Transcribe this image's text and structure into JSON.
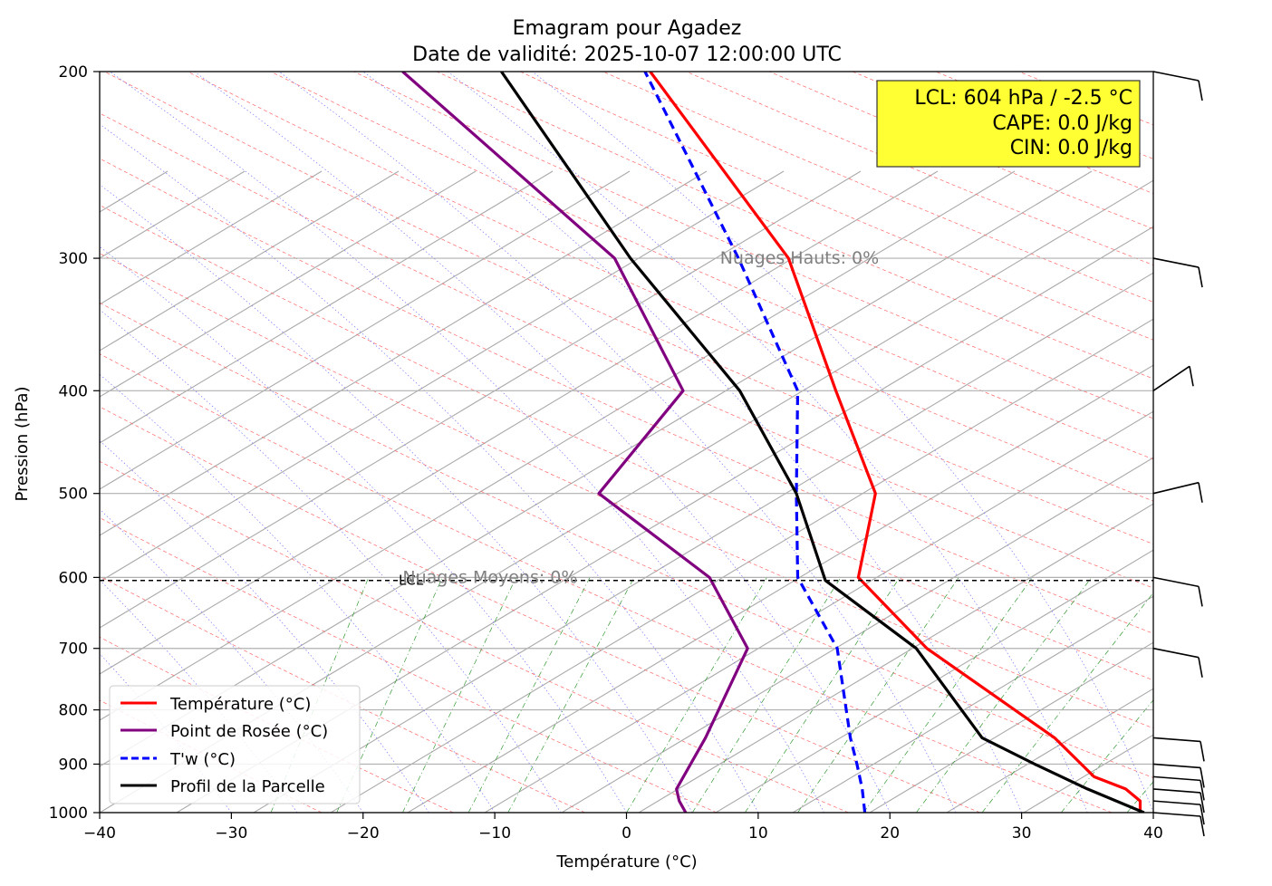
{
  "chart_data": {
    "type": "line",
    "title": "Emagram pour Agadez",
    "subtitle": "Date de validité: 2025-10-07 12:00:00 UTC",
    "xlabel": "Température (°C)",
    "ylabel": "Pression (hPa)",
    "xlim": [
      -40,
      40
    ],
    "ylim": [
      1000,
      200
    ],
    "y_scale": "log",
    "x_ticks": [
      {
        "value": -40,
        "label": "−40"
      },
      {
        "value": -30,
        "label": "−30"
      },
      {
        "value": -20,
        "label": "−20"
      },
      {
        "value": -10,
        "label": "−10"
      },
      {
        "value": 0,
        "label": "0"
      },
      {
        "value": 10,
        "label": "10"
      },
      {
        "value": 20,
        "label": "20"
      },
      {
        "value": 30,
        "label": "30"
      },
      {
        "value": 40,
        "label": "40"
      }
    ],
    "y_ticks": [
      {
        "value": 200,
        "label": "200"
      },
      {
        "value": 300,
        "label": "300"
      },
      {
        "value": 400,
        "label": "400"
      },
      {
        "value": 500,
        "label": "500"
      },
      {
        "value": 600,
        "label": "600"
      },
      {
        "value": 700,
        "label": "700"
      },
      {
        "value": 800,
        "label": "800"
      },
      {
        "value": 900,
        "label": "900"
      },
      {
        "value": 1000,
        "label": "1000"
      }
    ],
    "grid": true,
    "series": [
      {
        "name": "Température (°C)",
        "color": "#ff0000",
        "style": "solid",
        "points": [
          [
            39.0,
            1000
          ],
          [
            39.0,
            975
          ],
          [
            37.9,
            950
          ],
          [
            35.5,
            925
          ],
          [
            32.5,
            850
          ],
          [
            22.8,
            700
          ],
          [
            17.6,
            600
          ],
          [
            18.9,
            500
          ],
          [
            15.9,
            400
          ],
          [
            12.3,
            300
          ],
          [
            1.8,
            200
          ]
        ]
      },
      {
        "name": "Point de Rosée (°C)",
        "color": "#800080",
        "style": "solid",
        "points": [
          [
            4.5,
            1000
          ],
          [
            4.0,
            975
          ],
          [
            3.8,
            950
          ],
          [
            6.0,
            850
          ],
          [
            9.2,
            700
          ],
          [
            6.3,
            600
          ],
          [
            -2.1,
            500
          ],
          [
            4.3,
            400
          ],
          [
            -0.9,
            300
          ],
          [
            -17.0,
            200
          ]
        ]
      },
      {
        "name": "T'w (°C)",
        "color": "#0000ff",
        "style": "dashed",
        "points": [
          [
            18.1,
            1000
          ],
          [
            17.9,
            950
          ],
          [
            17.5,
            900
          ],
          [
            17.0,
            850
          ],
          [
            16.0,
            700
          ],
          [
            13.0,
            600
          ],
          [
            12.9,
            500
          ],
          [
            13.0,
            400
          ],
          [
            8.5,
            300
          ],
          [
            1.4,
            200
          ]
        ]
      },
      {
        "name": "Profil de la Parcelle",
        "color": "#000000",
        "style": "solid",
        "points": [
          [
            39.3,
            1000
          ],
          [
            35.0,
            950
          ],
          [
            31.0,
            900
          ],
          [
            27.0,
            850
          ],
          [
            22.0,
            700
          ],
          [
            15.1,
            604
          ],
          [
            12.9,
            500
          ],
          [
            8.6,
            400
          ],
          [
            0.3,
            300
          ],
          [
            -9.5,
            200
          ]
        ]
      }
    ],
    "lcl": {
      "pressure_hpa": 604,
      "temperature_c": -2.5,
      "label": "LCL"
    },
    "annotations": [
      {
        "text": "Nuages Hauts: 0%",
        "pressure_hpa": 300,
        "temperature_c": 7.1
      },
      {
        "text": "Nuages Moyens: 0%",
        "pressure_hpa": 600,
        "temperature_c": -17.0
      }
    ],
    "info_box": {
      "lines": [
        "LCL: 604 hPa / -2.5 °C",
        "CAPE: 0.0 J/kg",
        "CIN: 0.0 J/kg"
      ],
      "background": "#ffff33",
      "position": "top-right"
    },
    "legend_position": "bottom-left",
    "wind_barbs_levels_hpa": [
      200,
      300,
      400,
      500,
      600,
      700,
      850,
      900,
      925,
      950,
      975,
      1000
    ],
    "background_lines": {
      "isotherms_skewed": "gray",
      "dry_adiabats": "red dashed",
      "moist_adiabats": "blue dotted",
      "mixing_ratio": "green dash-dot"
    }
  }
}
